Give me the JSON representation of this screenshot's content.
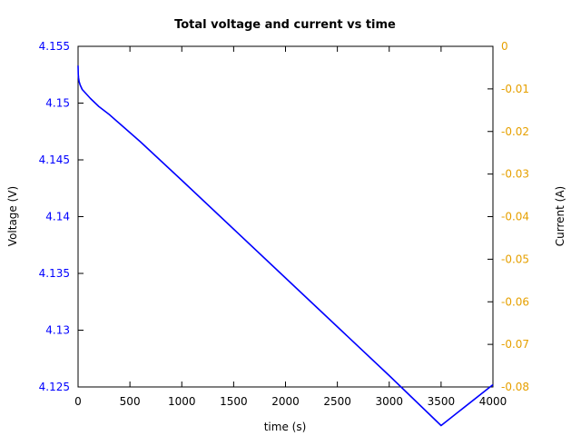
{
  "chart_data": {
    "type": "line",
    "title": "Total voltage and current vs time",
    "xlabel": "time (s)",
    "ylabel_left": "Voltage (V)",
    "ylabel_right": "Current (A)",
    "xlim": [
      0,
      4000
    ],
    "ylim_left": [
      4.125,
      4.155
    ],
    "ylim_right": [
      -0.08,
      0
    ],
    "x_ticks": [
      "0",
      "500",
      "1000",
      "1500",
      "2000",
      "2500",
      "3000",
      "3500",
      "4000"
    ],
    "y_ticks_left": [
      "4.125",
      "4.13",
      "4.135",
      "4.14",
      "4.145",
      "4.15",
      "4.155"
    ],
    "y_ticks_right": [
      "-0.08",
      "-0.07",
      "-0.06",
      "-0.05",
      "-0.04",
      "-0.03",
      "-0.02",
      "-0.01",
      "0"
    ],
    "grid": false,
    "colors": {
      "voltage": "#0000ff",
      "current": "#e6a000",
      "axes": "#000000"
    },
    "series": [
      {
        "axis": "left",
        "x": [
          0,
          2,
          5,
          10,
          20,
          40,
          80,
          120,
          200,
          300,
          400,
          600,
          800,
          1000,
          1500,
          2000,
          2500,
          3000,
          3500,
          4000
        ],
        "y": [
          4.1533,
          4.1525,
          4.1522,
          4.1519,
          4.1516,
          4.1512,
          4.1508,
          4.1504,
          4.1497,
          4.149,
          4.1482,
          4.1466,
          4.1449,
          4.1432,
          4.1389,
          4.1346,
          4.1303,
          4.126,
          4.1216,
          4.1252
        ]
      }
    ]
  }
}
